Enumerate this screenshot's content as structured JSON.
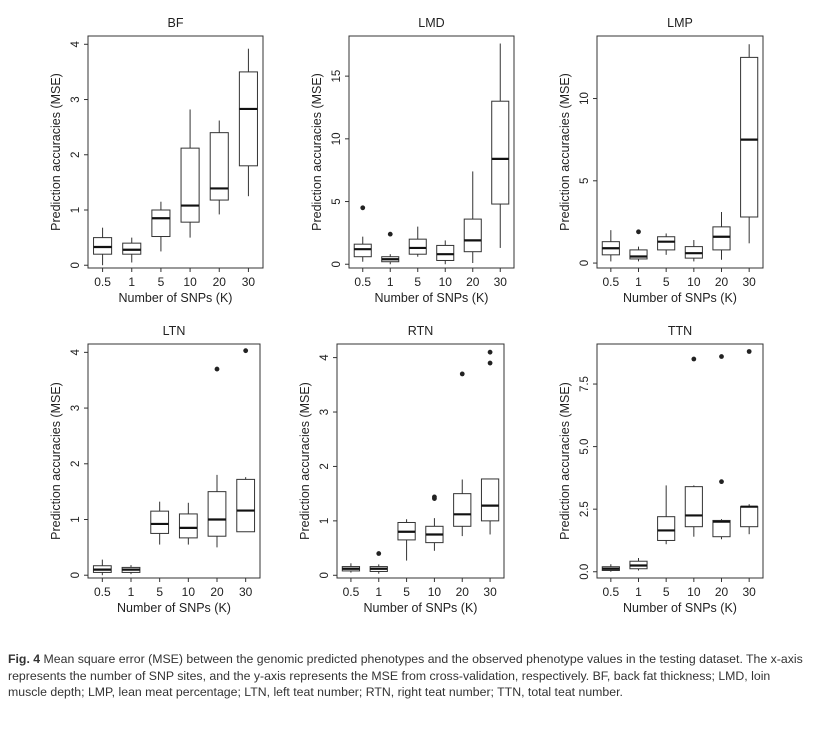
{
  "caption": {
    "label": "Fig. 4",
    "text": "Mean square error (MSE) between the genomic predicted phenotypes and the observed phenotype values in the testing dataset.  The x-axis represents the number of SNP sites, and the y-axis represents the MSE from cross-validation, respectively. BF, back fat thickness; LMD, loin muscle depth; LMP, lean meat percentage; LTN, left teat number; RTN, right teat number; TTN, total teat number."
  },
  "chart_data": [
    {
      "type": "box",
      "title": "BF",
      "xlabel": "Number of SNPs (K)",
      "ylabel": "Prediction accuracies (MSE)",
      "categories": [
        "0.5",
        "1",
        "5",
        "10",
        "20",
        "30"
      ],
      "ylim": [
        -0.05,
        4.15
      ],
      "yticks": [
        0,
        1,
        2,
        3,
        4
      ],
      "ytick_labels": [
        "0",
        "1",
        "2",
        "3",
        "4"
      ],
      "boxes": [
        {
          "min": 0.0,
          "q1": 0.2,
          "median": 0.33,
          "q3": 0.5,
          "max": 0.68,
          "outliers": []
        },
        {
          "min": 0.05,
          "q1": 0.2,
          "median": 0.28,
          "q3": 0.4,
          "max": 0.5,
          "outliers": []
        },
        {
          "min": 0.25,
          "q1": 0.52,
          "median": 0.85,
          "q3": 1.0,
          "max": 1.15,
          "outliers": []
        },
        {
          "min": 0.5,
          "q1": 0.78,
          "median": 1.08,
          "q3": 2.12,
          "max": 2.82,
          "outliers": []
        },
        {
          "min": 0.92,
          "q1": 1.18,
          "median": 1.39,
          "q3": 2.4,
          "max": 2.62,
          "outliers": []
        },
        {
          "min": 1.25,
          "q1": 1.8,
          "median": 2.83,
          "q3": 3.5,
          "max": 3.92,
          "outliers": []
        }
      ]
    },
    {
      "type": "box",
      "title": "LMD",
      "xlabel": "Number of SNPs (K)",
      "ylabel": "Prediction accuracies (MSE)",
      "categories": [
        "0.5",
        "1",
        "5",
        "10",
        "20",
        "30"
      ],
      "ylim": [
        -0.3,
        18.2
      ],
      "yticks": [
        0,
        5,
        10,
        15
      ],
      "ytick_labels": [
        "0",
        "5",
        "10",
        "15"
      ],
      "boxes": [
        {
          "min": 0.2,
          "q1": 0.6,
          "median": 1.2,
          "q3": 1.6,
          "max": 2.2,
          "outliers": [
            4.5
          ]
        },
        {
          "min": 0.0,
          "q1": 0.2,
          "median": 0.4,
          "q3": 0.6,
          "max": 0.8,
          "outliers": [
            2.4
          ]
        },
        {
          "min": 0.6,
          "q1": 0.8,
          "median": 1.3,
          "q3": 2.0,
          "max": 3.0,
          "outliers": []
        },
        {
          "min": 0.0,
          "q1": 0.3,
          "median": 0.8,
          "q3": 1.5,
          "max": 1.9,
          "outliers": []
        },
        {
          "min": 0.1,
          "q1": 1.0,
          "median": 1.9,
          "q3": 3.6,
          "max": 7.4,
          "outliers": []
        },
        {
          "min": 1.3,
          "q1": 4.8,
          "median": 8.4,
          "q3": 13.0,
          "max": 17.6,
          "outliers": []
        }
      ]
    },
    {
      "type": "box",
      "title": "LMP",
      "xlabel": "Number of SNPs (K)",
      "ylabel": "Prediction accuracies (MSE)",
      "categories": [
        "0.5",
        "1",
        "5",
        "10",
        "20",
        "30"
      ],
      "ylim": [
        -0.3,
        13.8
      ],
      "yticks": [
        0,
        5,
        10
      ],
      "ytick_labels": [
        "0",
        "5",
        "10"
      ],
      "boxes": [
        {
          "min": 0.1,
          "q1": 0.5,
          "median": 0.9,
          "q3": 1.3,
          "max": 2.0,
          "outliers": []
        },
        {
          "min": 0.1,
          "q1": 0.25,
          "median": 0.4,
          "q3": 0.8,
          "max": 1.0,
          "outliers": [
            1.9
          ]
        },
        {
          "min": 0.5,
          "q1": 0.8,
          "median": 1.3,
          "q3": 1.6,
          "max": 1.8,
          "outliers": []
        },
        {
          "min": 0.1,
          "q1": 0.3,
          "median": 0.6,
          "q3": 1.0,
          "max": 1.4,
          "outliers": []
        },
        {
          "min": 0.2,
          "q1": 0.8,
          "median": 1.6,
          "q3": 2.2,
          "max": 3.1,
          "outliers": []
        },
        {
          "min": 1.2,
          "q1": 2.8,
          "median": 7.5,
          "q3": 12.5,
          "max": 13.3,
          "outliers": []
        }
      ]
    },
    {
      "type": "box",
      "title": "LTN",
      "xlabel": "Number of SNPs (K)",
      "ylabel": "Prediction accuracies (MSE)",
      "categories": [
        "0.5",
        "1",
        "5",
        "10",
        "20",
        "30"
      ],
      "ylim": [
        -0.05,
        4.15
      ],
      "yticks": [
        0,
        1,
        2,
        3,
        4
      ],
      "ytick_labels": [
        "0",
        "1",
        "2",
        "3",
        "4"
      ],
      "boxes": [
        {
          "min": 0.0,
          "q1": 0.05,
          "median": 0.1,
          "q3": 0.17,
          "max": 0.28,
          "outliers": []
        },
        {
          "min": 0.02,
          "q1": 0.05,
          "median": 0.1,
          "q3": 0.14,
          "max": 0.18,
          "outliers": []
        },
        {
          "min": 0.55,
          "q1": 0.75,
          "median": 0.92,
          "q3": 1.15,
          "max": 1.32,
          "outliers": []
        },
        {
          "min": 0.55,
          "q1": 0.67,
          "median": 0.85,
          "q3": 1.1,
          "max": 1.3,
          "outliers": []
        },
        {
          "min": 0.5,
          "q1": 0.7,
          "median": 1.0,
          "q3": 1.5,
          "max": 1.8,
          "outliers": [
            3.7
          ]
        },
        {
          "min": 0.78,
          "q1": 0.78,
          "median": 1.16,
          "q3": 1.72,
          "max": 1.76,
          "outliers": [
            4.03
          ]
        }
      ]
    },
    {
      "type": "box",
      "title": "RTN",
      "xlabel": "Number of SNPs (K)",
      "ylabel": "Prediction accuracies (MSE)",
      "categories": [
        "0.5",
        "1",
        "5",
        "10",
        "20",
        "30"
      ],
      "ylim": [
        -0.05,
        4.25
      ],
      "yticks": [
        0,
        1,
        2,
        3,
        4
      ],
      "ytick_labels": [
        "0",
        "1",
        "2",
        "3",
        "4"
      ],
      "boxes": [
        {
          "min": 0.05,
          "q1": 0.08,
          "median": 0.12,
          "q3": 0.16,
          "max": 0.22,
          "outliers": []
        },
        {
          "min": 0.03,
          "q1": 0.07,
          "median": 0.12,
          "q3": 0.16,
          "max": 0.2,
          "outliers": [
            0.4
          ]
        },
        {
          "min": 0.27,
          "q1": 0.65,
          "median": 0.8,
          "q3": 0.97,
          "max": 1.03,
          "outliers": []
        },
        {
          "min": 0.45,
          "q1": 0.6,
          "median": 0.75,
          "q3": 0.9,
          "max": 1.05,
          "outliers": [
            1.41,
            1.44
          ]
        },
        {
          "min": 0.72,
          "q1": 0.9,
          "median": 1.12,
          "q3": 1.5,
          "max": 1.76,
          "outliers": [
            3.7
          ]
        },
        {
          "min": 0.75,
          "q1": 1.0,
          "median": 1.28,
          "q3": 1.77,
          "max": 1.77,
          "outliers": [
            3.9,
            4.1
          ]
        }
      ]
    },
    {
      "type": "box",
      "title": "TTN",
      "xlabel": "Number of SNPs (K)",
      "ylabel": "Prediction accuracies (MSE)",
      "categories": [
        "0.5",
        "1",
        "5",
        "10",
        "20",
        "30"
      ],
      "ylim": [
        -0.25,
        9.1
      ],
      "yticks": [
        0,
        2.5,
        5,
        7.5
      ],
      "ytick_labels": [
        "0.0",
        "2.5",
        "5.0",
        "7.5"
      ],
      "boxes": [
        {
          "min": 0.0,
          "q1": 0.05,
          "median": 0.12,
          "q3": 0.2,
          "max": 0.3,
          "outliers": []
        },
        {
          "min": 0.05,
          "q1": 0.12,
          "median": 0.25,
          "q3": 0.42,
          "max": 0.55,
          "outliers": []
        },
        {
          "min": 1.1,
          "q1": 1.25,
          "median": 1.65,
          "q3": 2.2,
          "max": 3.45,
          "outliers": []
        },
        {
          "min": 1.4,
          "q1": 1.8,
          "median": 2.25,
          "q3": 3.4,
          "max": 3.45,
          "outliers": [
            8.5
          ]
        },
        {
          "min": 1.3,
          "q1": 1.4,
          "median": 2.0,
          "q3": 2.05,
          "max": 2.1,
          "outliers": [
            3.6,
            8.6
          ]
        },
        {
          "min": 1.5,
          "q1": 1.8,
          "median": 2.6,
          "q3": 2.6,
          "max": 2.7,
          "outliers": [
            8.8
          ]
        }
      ]
    }
  ]
}
